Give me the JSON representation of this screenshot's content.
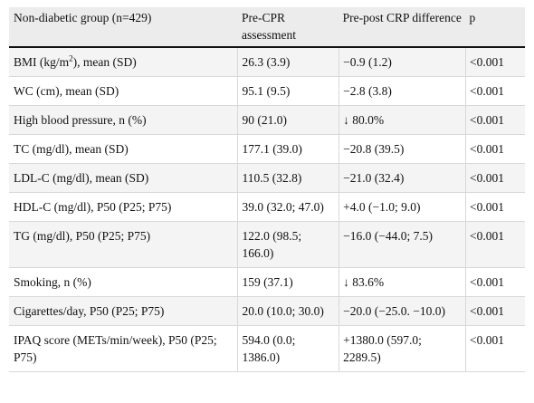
{
  "table": {
    "headers": [
      "Non-diabetic group (n=429)",
      "Pre-CPR assessment",
      "Pre-post CRP difference",
      "p"
    ],
    "rows": [
      {
        "variable_pre": "BMI (kg/m",
        "variable_sup": "2",
        "variable_post": "), mean (SD)",
        "pre": "26.3 (3.9)",
        "diff": "−0.9 (1.2)",
        "p": "<0.001"
      },
      {
        "variable": "WC (cm), mean (SD)",
        "pre": "95.1 (9.5)",
        "diff": "−2.8 (3.8)",
        "p": "<0.001"
      },
      {
        "variable": "High blood pressure, n (%)",
        "pre": "90 (21.0)",
        "diff": "↓ 80.0%",
        "p": "<0.001"
      },
      {
        "variable": "TC (mg/dl), mean (SD)",
        "pre": "177.1 (39.0)",
        "diff": "−20.8 (39.5)",
        "p": "<0.001"
      },
      {
        "variable": "LDL-C (mg/dl), mean (SD)",
        "pre": "110.5 (32.8)",
        "diff": "−21.0 (32.4)",
        "p": "<0.001"
      },
      {
        "variable": "HDL-C (mg/dl), P50 (P25; P75)",
        "pre": "39.0 (32.0; 47.0)",
        "diff": "+4.0 (−1.0; 9.0)",
        "p": "<0.001"
      },
      {
        "variable": "TG (mg/dl), P50 (P25; P75)",
        "pre": "122.0 (98.5; 166.0)",
        "diff": "−16.0 (−44.0; 7.5)",
        "p": "<0.001"
      },
      {
        "variable": "Smoking, n (%)",
        "pre": "159 (37.1)",
        "diff": "↓ 83.6%",
        "p": "<0.001"
      },
      {
        "variable": "Cigarettes/day, P50 (P25; P75)",
        "pre": "20.0 (10.0; 30.0)",
        "diff": "−20.0 (−25.0. −10.0)",
        "p": "<0.001"
      },
      {
        "variable": "IPAQ score (METs/min/week), P50 (P25; P75)",
        "pre": "594.0 (0.0; 1386.0)",
        "diff": "+1380.0 (597.0; 2289.5)",
        "p": "<0.001"
      }
    ]
  }
}
